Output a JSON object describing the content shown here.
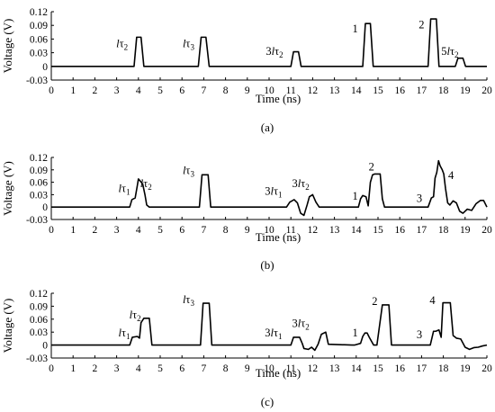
{
  "figure": {
    "panels": [
      {
        "id": "a",
        "label": "(a)"
      },
      {
        "id": "b",
        "label": "(b)"
      },
      {
        "id": "c",
        "label": "(c)"
      }
    ]
  },
  "chart_data": [
    {
      "type": "line",
      "panel": "a",
      "title": "",
      "xlabel": "Time (ns)",
      "ylabel": "Voltage (V)",
      "xlim": [
        0,
        20
      ],
      "ylim": [
        -0.03,
        0.12
      ],
      "xticks": [
        0,
        1,
        2,
        3,
        4,
        5,
        6,
        7,
        8,
        9,
        10,
        11,
        12,
        13,
        14,
        15,
        16,
        17,
        18,
        19,
        20
      ],
      "yticks": [
        -0.03,
        0,
        0.03,
        0.06,
        0.09,
        0.12
      ],
      "ytick_labels": [
        "-0.03",
        "0",
        "0.03",
        "0.06",
        "0.09",
        "0.12"
      ],
      "grid": false,
      "series": [
        {
          "x": [
            0,
            3.8,
            3.92,
            4.12,
            4.25,
            6.75,
            6.88,
            7.1,
            7.25,
            11.0,
            11.12,
            11.35,
            11.47,
            14.3,
            14.42,
            14.65,
            14.78,
            17.3,
            17.42,
            17.68,
            17.8,
            18.55,
            18.67,
            18.9,
            19.02,
            20
          ],
          "y": [
            0,
            0,
            0.064,
            0.064,
            0,
            0,
            0.064,
            0.064,
            0,
            0,
            0.032,
            0.032,
            0,
            0,
            0.094,
            0.094,
            0,
            0,
            0.104,
            0.104,
            0,
            0,
            0.018,
            0.018,
            0,
            0
          ]
        }
      ],
      "annotations": [
        {
          "x": 3.25,
          "y": 0.042,
          "text": "lτ2"
        },
        {
          "x": 6.3,
          "y": 0.042,
          "text": "lτ3"
        },
        {
          "x": 10.25,
          "y": 0.025,
          "text": "3lτ2"
        },
        {
          "x": 13.95,
          "y": 0.075,
          "text": "1"
        },
        {
          "x": 17.0,
          "y": 0.083,
          "text": "2"
        },
        {
          "x": 18.3,
          "y": 0.025,
          "text": "5lτ2"
        }
      ]
    },
    {
      "type": "line",
      "panel": "b",
      "title": "",
      "xlabel": "Time (ns)",
      "ylabel": "Voltage (V)",
      "xlim": [
        0,
        20
      ],
      "ylim": [
        -0.03,
        0.12
      ],
      "xticks": [
        0,
        1,
        2,
        3,
        4,
        5,
        6,
        7,
        8,
        9,
        10,
        11,
        12,
        13,
        14,
        15,
        16,
        17,
        18,
        19,
        20
      ],
      "yticks": [
        -0.03,
        0,
        0.03,
        0.06,
        0.09,
        0.12
      ],
      "ytick_labels": [
        "-0.03",
        "0",
        "0.03",
        "0.06",
        "0.09",
        "0.12"
      ],
      "grid": false,
      "series": [
        {
          "x": [
            0,
            3.6,
            3.7,
            3.85,
            3.95,
            4.0,
            4.1,
            4.2,
            4.3,
            4.38,
            4.5,
            6.8,
            6.92,
            7.2,
            7.32,
            10.8,
            10.95,
            11.15,
            11.3,
            11.45,
            11.6,
            11.75,
            11.85,
            12.0,
            12.15,
            12.3,
            14.1,
            14.2,
            14.3,
            14.45,
            14.55,
            14.65,
            14.75,
            14.85,
            15.1,
            15.2,
            15.3,
            17.3,
            17.45,
            17.55,
            17.62,
            17.7,
            17.78,
            17.85,
            17.95,
            18.02,
            18.1,
            18.2,
            18.3,
            18.45,
            18.6,
            18.75,
            18.9,
            19.1,
            19.3,
            19.5,
            19.7,
            19.85,
            20
          ],
          "y": [
            0,
            0,
            0.018,
            0.022,
            0.052,
            0.068,
            0.062,
            0.055,
            0.03,
            0.005,
            0,
            0,
            0.078,
            0.078,
            0,
            0,
            0.012,
            0.018,
            0.01,
            -0.015,
            -0.02,
            0.006,
            0.025,
            0.03,
            0.012,
            0,
            0,
            0.02,
            0.028,
            0.025,
            0.003,
            0.06,
            0.078,
            0.08,
            0.08,
            0.02,
            0,
            0,
            0.022,
            0.025,
            0.07,
            0.084,
            0.112,
            0.1,
            0.09,
            0.08,
            0.045,
            0.01,
            0.005,
            0.015,
            0.01,
            -0.01,
            -0.015,
            -0.005,
            -0.008,
            0.008,
            0.016,
            0.016,
            0
          ]
        }
      ],
      "annotations": [
        {
          "x": 3.35,
          "y": 0.036,
          "text": "lτ1"
        },
        {
          "x": 4.35,
          "y": 0.048,
          "text": "lτ2"
        },
        {
          "x": 6.3,
          "y": 0.08,
          "text": "lτ3"
        },
        {
          "x": 10.2,
          "y": 0.03,
          "text": "3lτ1"
        },
        {
          "x": 11.45,
          "y": 0.048,
          "text": "3lτ2"
        },
        {
          "x": 13.95,
          "y": 0.018,
          "text": "1"
        },
        {
          "x": 14.7,
          "y": 0.088,
          "text": "2"
        },
        {
          "x": 16.9,
          "y": 0.012,
          "text": "3"
        },
        {
          "x": 18.35,
          "y": 0.068,
          "text": "4"
        }
      ]
    },
    {
      "type": "line",
      "panel": "c",
      "title": "",
      "xlabel": "Time (ns)",
      "ylabel": "Voltage (V)",
      "xlim": [
        0,
        20
      ],
      "ylim": [
        -0.03,
        0.12
      ],
      "xticks": [
        0,
        1,
        2,
        3,
        4,
        5,
        6,
        7,
        8,
        9,
        10,
        11,
        12,
        13,
        14,
        15,
        16,
        17,
        18,
        19,
        20
      ],
      "yticks": [
        -0.03,
        0,
        0.03,
        0.06,
        0.09,
        0.12
      ],
      "ytick_labels": [
        "-0.03",
        "0",
        "0.03",
        "0.06",
        "0.09",
        "0.12"
      ],
      "grid": false,
      "series": [
        {
          "x": [
            0,
            3.6,
            3.72,
            3.95,
            4.05,
            4.12,
            4.25,
            4.5,
            4.62,
            6.85,
            6.97,
            7.25,
            7.37,
            11.0,
            11.12,
            11.4,
            11.52,
            11.6,
            11.8,
            11.95,
            12.1,
            12.25,
            12.4,
            12.6,
            12.72,
            13.8,
            13.92,
            14.2,
            14.3,
            14.4,
            14.5,
            14.6,
            14.8,
            14.95,
            15.2,
            15.32,
            15.5,
            15.62,
            17.4,
            17.55,
            17.65,
            17.8,
            17.9,
            17.98,
            18.08,
            18.32,
            18.45,
            18.6,
            18.8,
            19.0,
            19.2,
            19.4,
            19.6,
            19.8,
            20
          ],
          "y": [
            0,
            0,
            0.018,
            0.02,
            0.016,
            0.052,
            0.062,
            0.062,
            0,
            0,
            0.097,
            0.097,
            0,
            0,
            0.018,
            0.018,
            0.004,
            -0.008,
            -0.01,
            -0.005,
            -0.012,
            0.002,
            0.025,
            0.03,
            0.002,
            0,
            0,
            0.004,
            0.02,
            0.028,
            0.028,
            0.018,
            0,
            0,
            0.093,
            0.093,
            0.093,
            0,
            0,
            0.032,
            0.032,
            0.035,
            0.018,
            0.098,
            0.098,
            0.098,
            0.022,
            0.016,
            0.014,
            -0.005,
            -0.01,
            -0.006,
            -0.005,
            -0.002,
            0
          ]
        }
      ],
      "annotations": [
        {
          "x": 3.35,
          "y": 0.02,
          "text": "lτ1"
        },
        {
          "x": 3.85,
          "y": 0.062,
          "text": "lτ2"
        },
        {
          "x": 6.3,
          "y": 0.097,
          "text": "lτ3"
        },
        {
          "x": 10.2,
          "y": 0.02,
          "text": "3lτ1"
        },
        {
          "x": 11.45,
          "y": 0.042,
          "text": "3lτ2"
        },
        {
          "x": 13.95,
          "y": 0.02,
          "text": "1"
        },
        {
          "x": 14.85,
          "y": 0.093,
          "text": "2"
        },
        {
          "x": 16.9,
          "y": 0.016,
          "text": "3"
        },
        {
          "x": 17.5,
          "y": 0.095,
          "text": "4"
        }
      ]
    }
  ]
}
